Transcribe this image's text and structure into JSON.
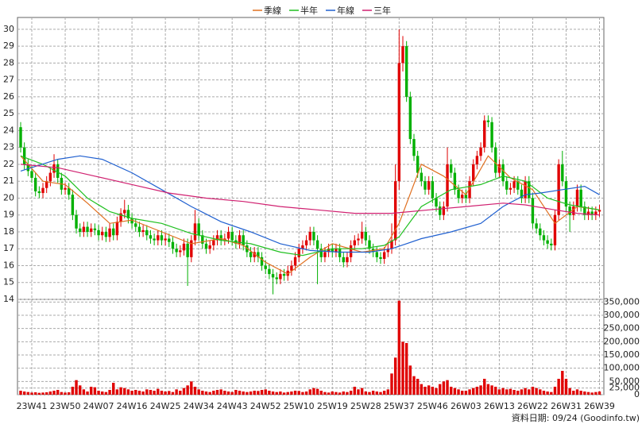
{
  "chart_data": {
    "type": "candlestick",
    "categories": [
      null,
      null,
      null,
      "23W41",
      null,
      null,
      null,
      null,
      null,
      null,
      null,
      null,
      "23W50",
      null,
      null,
      null,
      null,
      null,
      null,
      null,
      null,
      "24W07",
      null,
      null,
      null,
      null,
      null,
      null,
      null,
      null,
      "24W16",
      null,
      null,
      null,
      null,
      null,
      null,
      null,
      null,
      "24W25",
      null,
      null,
      null,
      null,
      null,
      null,
      null,
      null,
      "24W34",
      null,
      null,
      null,
      null,
      null,
      null,
      null,
      null,
      "24W43",
      null,
      null,
      null,
      null,
      null,
      null,
      null,
      null,
      "24W52",
      null,
      null,
      null,
      null,
      null,
      null,
      null,
      null,
      "25W10",
      null,
      null,
      null,
      null,
      null,
      null,
      null,
      null,
      "25W19",
      null,
      null,
      null,
      null,
      null,
      null,
      null,
      null,
      "25W28",
      null,
      null,
      null,
      null,
      null,
      null,
      null,
      null,
      "25W37",
      null,
      null,
      null,
      null,
      null,
      null,
      null,
      null,
      "25W46",
      null,
      null,
      null,
      null,
      null,
      null,
      null,
      null,
      "26W03",
      null,
      null,
      null,
      null,
      null,
      null,
      null,
      null,
      "26W13",
      null,
      null,
      null,
      null,
      null,
      null,
      null,
      null,
      "26W22",
      null,
      null,
      null,
      null,
      null,
      null,
      null,
      null,
      "26W31",
      null,
      null,
      null,
      null,
      null,
      null,
      null,
      null,
      "26W39"
    ],
    "open": [
      24.2,
      23.0,
      22.0,
      21.6,
      21.2,
      20.4,
      20.3,
      20.6,
      21.0,
      21.5,
      22.0,
      21.2,
      20.5,
      20.6,
      20.2,
      19.0,
      18.2,
      18.0,
      18.3,
      18.0,
      18.2,
      18.1,
      17.8,
      18.0,
      17.7,
      18.2,
      17.8,
      18.6,
      19.1,
      19.3,
      18.8,
      18.5,
      18.3,
      18.0,
      18.1,
      17.8,
      17.6,
      17.5,
      17.8,
      17.5,
      17.6,
      17.4,
      17.0,
      16.8,
      16.9,
      17.3,
      16.5,
      17.5,
      18.5,
      17.8,
      17.3,
      17.0,
      17.2,
      17.5,
      17.8,
      17.5,
      17.6,
      18.0,
      17.5,
      17.3,
      17.8,
      17.2,
      16.8,
      16.5,
      16.8,
      16.5,
      16.0,
      15.8,
      15.5,
      15.3,
      15.2,
      15.5,
      15.4,
      15.7,
      16.0,
      16.5,
      17.0,
      17.2,
      17.5,
      18.0,
      17.5,
      17.0,
      16.5,
      16.8,
      17.0,
      16.8,
      17.0,
      16.5,
      16.2,
      16.5,
      17.2,
      17.5,
      17.6,
      18.0,
      17.5,
      17.0,
      16.8,
      16.5,
      16.4,
      16.8,
      17.0,
      17.5,
      21.0,
      28.0,
      29.0,
      26.0,
      23.5,
      22.5,
      21.5,
      21.0,
      20.5,
      21.0,
      20.0,
      19.5,
      19.0,
      19.5,
      22.0,
      21.5,
      20.5,
      20.0,
      20.2,
      20.0,
      21.0,
      22.0,
      22.5,
      23.0,
      24.6,
      24.5,
      23.0,
      21.5,
      22.0,
      21.0,
      20.5,
      20.6,
      21.0,
      20.5,
      20.0,
      21.0,
      20.0,
      18.5,
      18.2,
      17.8,
      17.5,
      17.3,
      17.2,
      19.0,
      22.0,
      21.0,
      19.5,
      19.0,
      19.5,
      20.5,
      19.5,
      19.0,
      19.2,
      19.0,
      19.2
    ],
    "high": [
      24.5,
      23.3,
      22.3,
      21.9,
      21.5,
      20.7,
      20.9,
      21.3,
      21.8,
      22.6,
      22.3,
      21.5,
      20.9,
      20.9,
      20.5,
      19.3,
      18.5,
      18.6,
      18.6,
      18.5,
      18.5,
      18.4,
      18.3,
      18.3,
      18.5,
      18.5,
      18.9,
      19.4,
      19.9,
      19.6,
      19.1,
      18.8,
      18.6,
      18.4,
      18.4,
      18.1,
      17.9,
      18.1,
      18.1,
      17.9,
      17.9,
      17.7,
      17.3,
      17.2,
      17.6,
      17.6,
      17.8,
      19.3,
      18.8,
      18.1,
      17.6,
      17.5,
      17.8,
      18.1,
      18.1,
      17.9,
      18.3,
      18.3,
      17.8,
      18.1,
      18.1,
      17.5,
      17.1,
      17.1,
      17.1,
      16.8,
      16.3,
      16.1,
      15.8,
      15.6,
      15.8,
      15.8,
      16.0,
      16.3,
      16.8,
      17.3,
      17.5,
      17.8,
      18.3,
      18.3,
      17.8,
      17.3,
      17.1,
      17.3,
      17.3,
      17.3,
      17.3,
      16.8,
      16.8,
      17.5,
      17.8,
      17.9,
      18.6,
      18.3,
      17.8,
      17.3,
      17.1,
      16.8,
      17.1,
      17.3,
      18.5,
      22.0,
      30.0,
      29.6,
      29.3,
      26.3,
      23.8,
      22.8,
      21.8,
      21.3,
      21.3,
      21.3,
      20.3,
      19.8,
      19.8,
      23.0,
      22.3,
      21.8,
      20.8,
      20.5,
      20.5,
      21.3,
      22.3,
      22.8,
      23.3,
      24.9,
      24.9,
      24.8,
      23.3,
      22.3,
      22.3,
      21.3,
      20.9,
      21.3,
      21.3,
      20.8,
      21.3,
      21.3,
      20.3,
      18.8,
      18.5,
      18.1,
      17.8,
      17.6,
      19.3,
      22.3,
      22.8,
      21.3,
      19.8,
      19.8,
      20.8,
      20.8,
      19.8,
      19.5,
      19.5,
      19.5,
      19.6
    ],
    "low": [
      22.7,
      21.7,
      21.3,
      20.9,
      20.1,
      20.0,
      20.0,
      20.3,
      20.7,
      21.2,
      20.9,
      20.2,
      20.2,
      19.9,
      18.7,
      17.9,
      17.7,
      17.7,
      17.7,
      17.7,
      17.8,
      17.5,
      17.5,
      17.4,
      17.4,
      17.5,
      17.5,
      18.3,
      18.8,
      18.5,
      18.2,
      18.0,
      17.7,
      17.7,
      17.5,
      17.3,
      17.2,
      17.2,
      17.2,
      17.2,
      17.1,
      16.7,
      16.5,
      16.5,
      16.6,
      14.8,
      16.2,
      17.2,
      17.5,
      17.0,
      16.7,
      16.7,
      16.9,
      17.2,
      17.2,
      17.2,
      17.3,
      17.2,
      17.0,
      17.0,
      16.9,
      16.5,
      16.2,
      16.2,
      16.2,
      15.7,
      15.5,
      15.2,
      14.3,
      14.9,
      14.9,
      15.1,
      15.1,
      15.4,
      15.7,
      16.2,
      16.7,
      16.9,
      17.2,
      17.2,
      14.9,
      16.2,
      16.2,
      16.5,
      16.5,
      16.5,
      16.2,
      15.9,
      15.9,
      16.2,
      16.9,
      17.2,
      17.3,
      17.2,
      16.7,
      16.5,
      16.2,
      16.1,
      16.1,
      16.5,
      16.7,
      17.2,
      20.5,
      27.5,
      25.7,
      23.2,
      22.2,
      21.2,
      20.7,
      20.2,
      20.2,
      19.7,
      19.2,
      18.7,
      18.7,
      19.2,
      21.2,
      20.2,
      19.7,
      19.7,
      19.7,
      19.7,
      20.7,
      21.7,
      22.2,
      22.7,
      24.2,
      22.7,
      21.2,
      21.2,
      20.7,
      20.2,
      20.2,
      20.3,
      20.2,
      19.7,
      19.7,
      19.7,
      18.2,
      17.9,
      17.5,
      17.2,
      17.0,
      16.9,
      16.9,
      18.7,
      20.7,
      19.2,
      18.0,
      18.7,
      19.2,
      19.2,
      18.7,
      18.7,
      18.7,
      18.7,
      18.9
    ],
    "close": [
      23.0,
      22.0,
      21.6,
      21.2,
      20.4,
      20.3,
      20.6,
      21.0,
      21.5,
      22.0,
      21.2,
      20.5,
      20.6,
      20.2,
      19.0,
      18.2,
      18.0,
      18.3,
      18.0,
      18.2,
      18.1,
      17.8,
      18.0,
      17.7,
      18.2,
      17.8,
      18.6,
      19.1,
      19.3,
      18.8,
      18.5,
      18.3,
      18.0,
      18.1,
      17.8,
      17.6,
      17.5,
      17.8,
      17.5,
      17.6,
      17.4,
      17.0,
      16.8,
      16.9,
      17.3,
      16.5,
      17.5,
      18.5,
      17.8,
      17.3,
      17.0,
      17.2,
      17.5,
      17.8,
      17.5,
      17.6,
      18.0,
      17.5,
      17.3,
      17.8,
      17.2,
      16.8,
      16.5,
      16.8,
      16.5,
      16.0,
      15.8,
      15.5,
      15.3,
      15.2,
      15.5,
      15.4,
      15.7,
      16.0,
      16.5,
      17.0,
      17.2,
      17.5,
      18.0,
      17.5,
      17.0,
      16.5,
      16.8,
      17.0,
      16.8,
      17.0,
      16.5,
      16.2,
      16.5,
      17.2,
      17.5,
      17.6,
      18.0,
      17.5,
      17.0,
      16.8,
      16.5,
      16.4,
      16.8,
      17.0,
      17.5,
      21.0,
      28.0,
      29.0,
      26.0,
      23.5,
      22.5,
      21.5,
      21.0,
      20.5,
      21.0,
      20.0,
      19.5,
      19.0,
      19.5,
      22.0,
      21.5,
      20.5,
      20.0,
      20.2,
      20.0,
      21.0,
      22.0,
      22.5,
      23.0,
      24.6,
      24.5,
      23.0,
      21.5,
      22.0,
      21.0,
      20.5,
      20.6,
      21.0,
      20.5,
      20.0,
      21.0,
      20.0,
      18.5,
      18.2,
      17.8,
      17.5,
      17.3,
      17.2,
      19.0,
      22.0,
      21.0,
      19.5,
      19.0,
      19.5,
      20.5,
      19.5,
      19.0,
      19.2,
      19.0,
      19.2,
      19.3
    ],
    "up_color": "#e00000",
    "down_color": "#00b000",
    "ylim": [
      14,
      30.7
    ],
    "yticks": [
      14,
      15,
      16,
      17,
      18,
      19,
      20,
      21,
      22,
      23,
      24,
      25,
      26,
      27,
      28,
      29,
      30
    ],
    "grid": true,
    "lines": [
      {
        "name": "季線",
        "color": "#e07020",
        "x": [
          0,
          6,
          12,
          18,
          24,
          30,
          38,
          46,
          54,
          60,
          66,
          72,
          78,
          84,
          92,
          98,
          102,
          108,
          114,
          120,
          126,
          132,
          138,
          144,
          150,
          156
        ],
        "values": [
          22.5,
          21.0,
          20.8,
          19.7,
          18.5,
          18.7,
          18.0,
          17.3,
          17.6,
          17.2,
          16.2,
          15.5,
          16.5,
          17.3,
          16.8,
          17.0,
          18.5,
          22.0,
          21.3,
          20.2,
          22.5,
          21.2,
          20.5,
          18.5,
          19.5,
          19.3
        ]
      },
      {
        "name": "半年",
        "color": "#20c020",
        "x": [
          0,
          6,
          12,
          18,
          24,
          30,
          38,
          46,
          54,
          62,
          70,
          76,
          84,
          92,
          98,
          102,
          108,
          116,
          124,
          130,
          136,
          142,
          148,
          156
        ],
        "values": [
          22.5,
          22.0,
          21.3,
          20.0,
          19.2,
          18.8,
          18.5,
          17.9,
          17.5,
          17.3,
          16.8,
          16.6,
          17.0,
          17.0,
          17.2,
          17.7,
          19.5,
          20.5,
          20.8,
          21.3,
          21.0,
          20.0,
          19.6,
          19.3
        ]
      },
      {
        "name": "年線",
        "color": "#2060d0",
        "x": [
          0,
          10,
          16,
          22,
          30,
          38,
          46,
          54,
          62,
          70,
          78,
          86,
          94,
          100,
          108,
          116,
          124,
          130,
          136,
          140,
          146,
          152,
          156
        ],
        "values": [
          21.6,
          22.3,
          22.5,
          22.3,
          21.5,
          20.5,
          19.5,
          18.6,
          18.0,
          17.3,
          16.9,
          16.8,
          16.8,
          17.0,
          17.6,
          18.0,
          18.5,
          19.5,
          20.2,
          20.3,
          20.5,
          20.7,
          20.2
        ]
      },
      {
        "name": "三年",
        "color": "#d02070",
        "x": [
          0,
          10,
          20,
          30,
          40,
          50,
          60,
          70,
          80,
          90,
          100,
          110,
          120,
          130,
          136,
          144,
          150,
          156
        ],
        "values": [
          22.0,
          21.8,
          21.3,
          20.8,
          20.3,
          20.0,
          19.8,
          19.5,
          19.3,
          19.1,
          19.1,
          19.3,
          19.5,
          19.7,
          19.6,
          19.3,
          19.1,
          19.0
        ]
      }
    ],
    "volume": {
      "color": "#e00000",
      "values": [
        15000,
        12000,
        10000,
        8000,
        9000,
        7000,
        8000,
        9000,
        12000,
        15000,
        18000,
        10000,
        8000,
        9000,
        30000,
        55000,
        35000,
        20000,
        12000,
        30000,
        28000,
        15000,
        12000,
        10000,
        18000,
        45000,
        20000,
        28000,
        25000,
        20000,
        15000,
        18000,
        15000,
        12000,
        20000,
        18000,
        15000,
        22000,
        15000,
        12000,
        14000,
        10000,
        20000,
        15000,
        25000,
        35000,
        50000,
        30000,
        20000,
        15000,
        12000,
        10000,
        15000,
        18000,
        20000,
        15000,
        12000,
        10000,
        18000,
        15000,
        12000,
        10000,
        12000,
        15000,
        14000,
        18000,
        20000,
        15000,
        12000,
        10000,
        12000,
        8000,
        10000,
        12000,
        15000,
        14000,
        10000,
        12000,
        20000,
        25000,
        22000,
        15000,
        10000,
        8000,
        12000,
        10000,
        8000,
        12000,
        10000,
        15000,
        30000,
        20000,
        25000,
        12000,
        10000,
        15000,
        12000,
        10000,
        15000,
        20000,
        80000,
        140000,
        355000,
        200000,
        195000,
        110000,
        70000,
        60000,
        40000,
        30000,
        35000,
        30000,
        25000,
        40000,
        50000,
        55000,
        30000,
        25000,
        20000,
        15000,
        15000,
        20000,
        25000,
        30000,
        35000,
        60000,
        40000,
        35000,
        30000,
        20000,
        25000,
        20000,
        22000,
        18000,
        15000,
        20000,
        25000,
        20000,
        30000,
        25000,
        20000,
        15000,
        12000,
        10000,
        30000,
        60000,
        90000,
        60000,
        25000,
        15000,
        20000,
        15000,
        12000,
        10000,
        8000,
        10000,
        12000
      ],
      "ylim": [
        0,
        360000
      ],
      "yticks": [
        0,
        {
          "value": 25000,
          "label": "25,000"
        },
        {
          "value": 50000,
          "label": "50,000"
        },
        {
          "value": 100000,
          "label": "100,000"
        },
        {
          "value": 150000,
          "label": "150,000"
        },
        {
          "value": 200000,
          "label": "200,000"
        },
        {
          "value": 250000,
          "label": "250,000"
        },
        {
          "value": 300000,
          "label": "300,000"
        },
        {
          "value": 350000,
          "label": "350,000"
        }
      ]
    },
    "footer": "資料日期: 09/24  (Goodinfo.tw)"
  }
}
